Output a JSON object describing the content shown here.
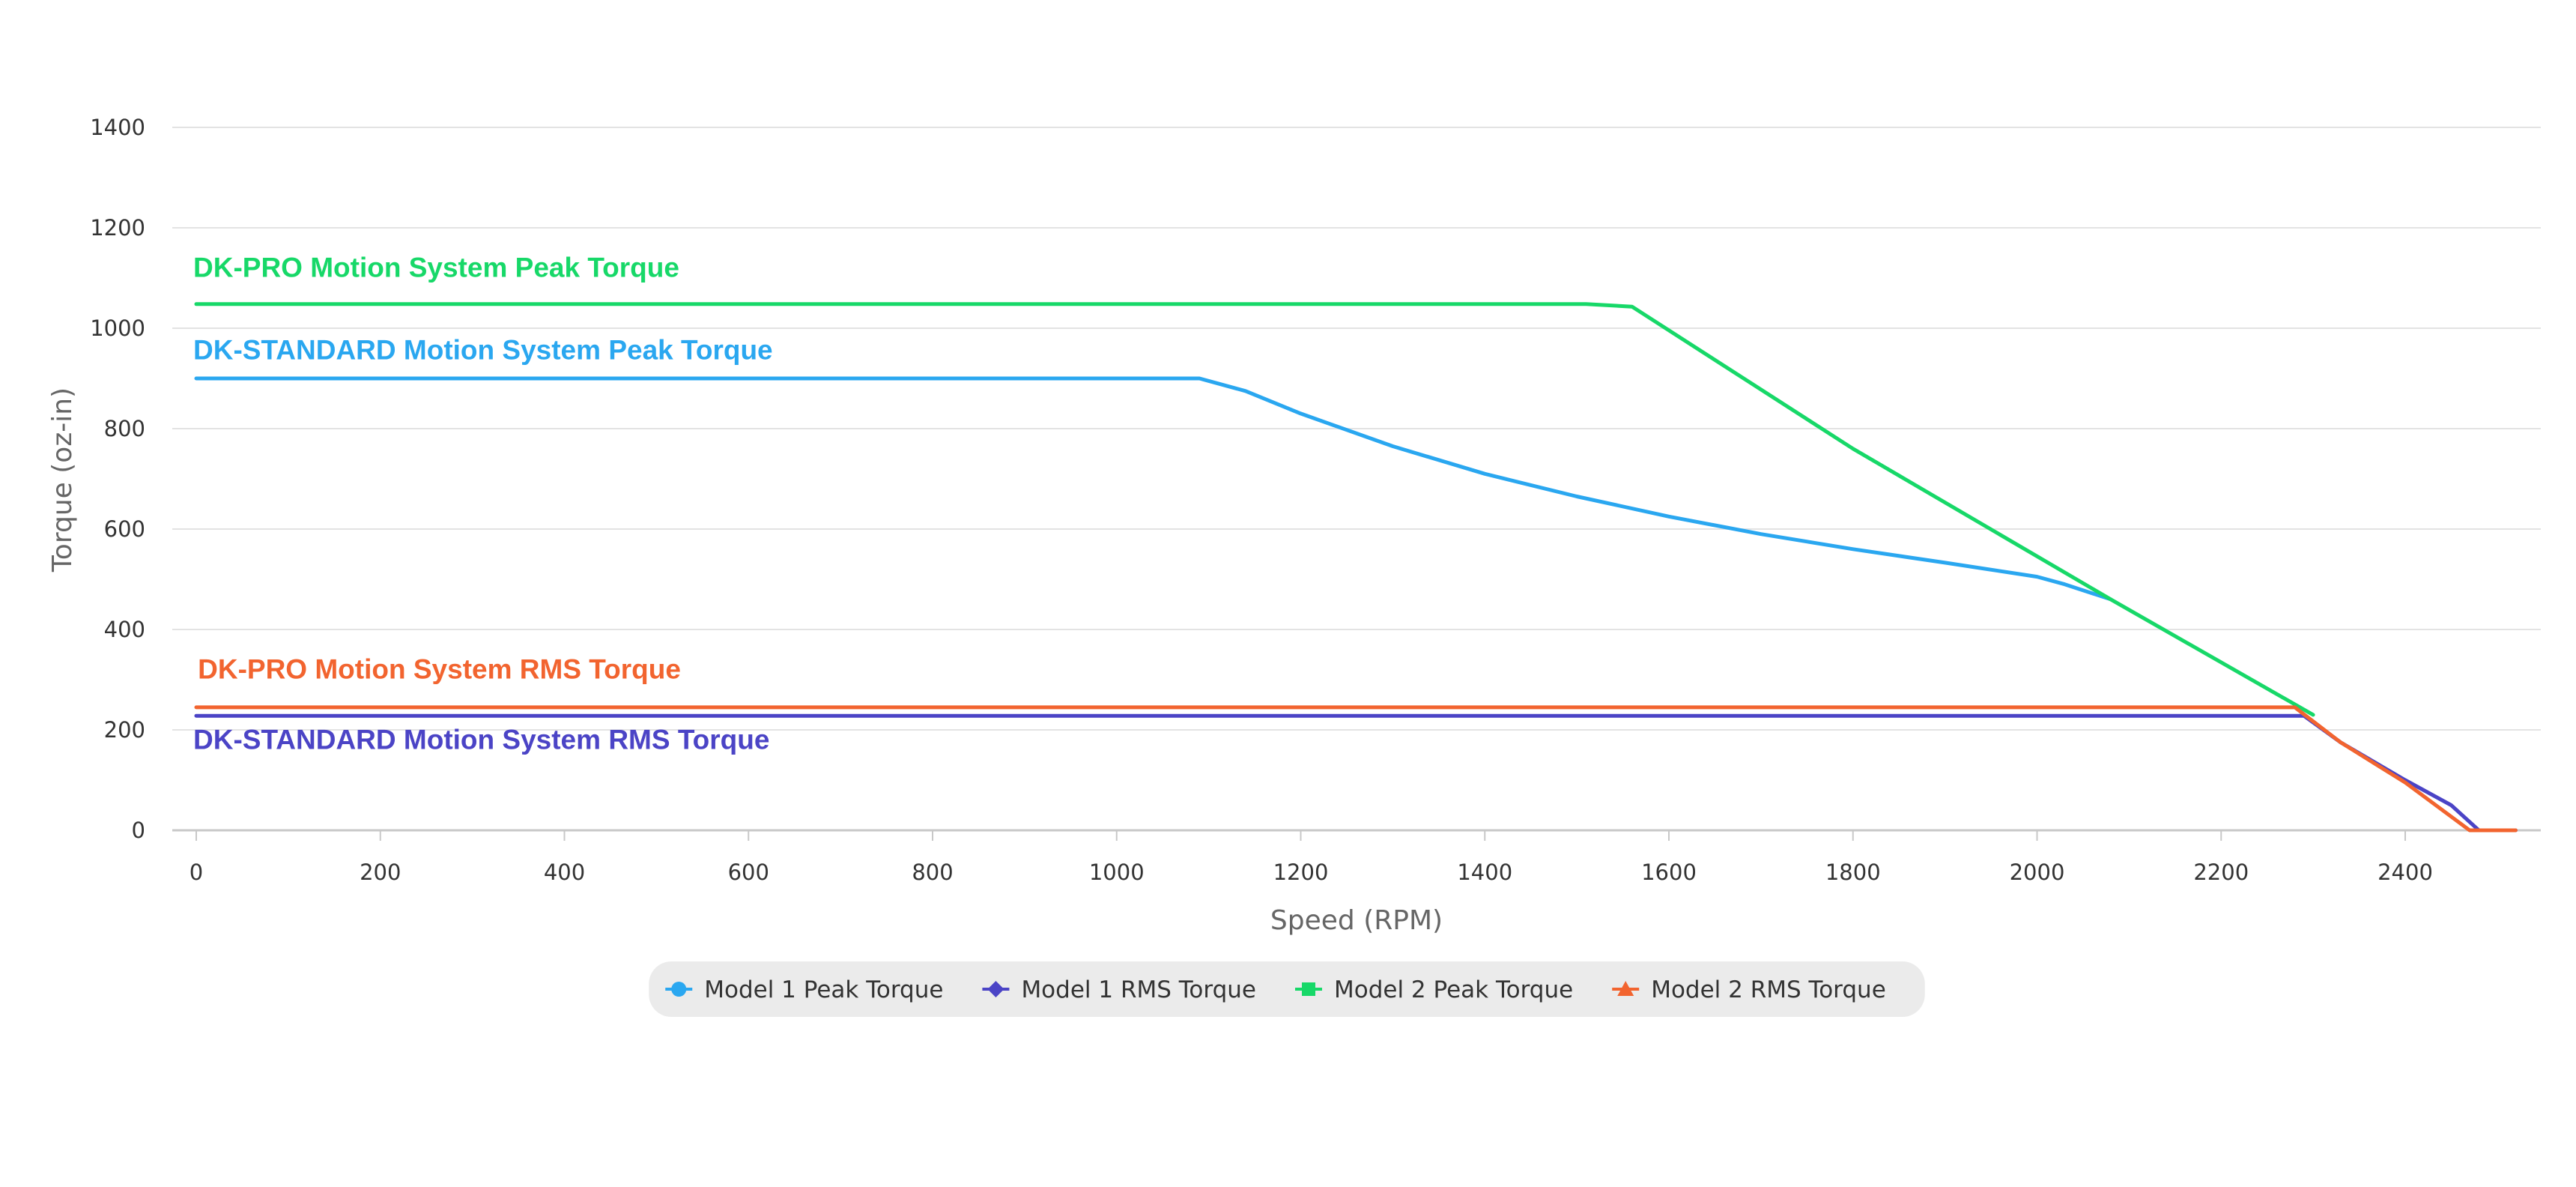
{
  "chart_data": {
    "type": "line",
    "title": "",
    "xlabel": "Speed (RPM)",
    "ylabel": "Torque (oz-in)",
    "xlim": [
      -25,
      2550
    ],
    "ylim": [
      0,
      1400
    ],
    "x_ticks": [
      0,
      200,
      400,
      600,
      800,
      1000,
      1200,
      1400,
      1600,
      1800,
      2000,
      2200,
      2400
    ],
    "y_ticks": [
      0,
      200,
      400,
      600,
      800,
      1000,
      1200,
      1400
    ],
    "grid": true,
    "legend_position": "bottom-center",
    "series": [
      {
        "name": "Model 1 Peak Torque",
        "color": "#2aa7f0",
        "marker": "circle",
        "x": [
          0,
          1090,
          1140,
          1200,
          1300,
          1400,
          1500,
          1600,
          1700,
          1800,
          1900,
          2000,
          2030,
          2080
        ],
        "y": [
          900,
          900,
          875,
          830,
          765,
          710,
          665,
          625,
          590,
          560,
          533,
          505,
          490,
          460
        ]
      },
      {
        "name": "Model 1 RMS Torque",
        "color": "#4b44c6",
        "marker": "diamond",
        "x": [
          0,
          2290,
          2330,
          2400,
          2450,
          2480,
          2520
        ],
        "y": [
          228,
          228,
          175,
          100,
          50,
          0,
          0
        ]
      },
      {
        "name": "Model 2 Peak Torque",
        "color": "#17d868",
        "marker": "square",
        "x": [
          0,
          1510,
          1560,
          1800,
          2080,
          2300
        ],
        "y": [
          1048,
          1048,
          1043,
          760,
          460,
          230
        ]
      },
      {
        "name": "Model 2 RMS Torque",
        "color": "#f2642f",
        "marker": "triangle",
        "x": [
          0,
          2280,
          2330,
          2400,
          2470,
          2520
        ],
        "y": [
          245,
          245,
          175,
          95,
          0,
          0
        ]
      }
    ],
    "annotations": [
      {
        "text": "DK-PRO Motion System Peak Torque",
        "color": "#17d868",
        "x": 0,
        "y": 1102
      },
      {
        "text": "DK-STANDARD Motion System Peak Torque",
        "color": "#2aa7f0",
        "x": 0,
        "y": 938
      },
      {
        "text": "DK-PRO Motion System RMS Torque",
        "color": "#f2642f",
        "x": 5,
        "y": 302
      },
      {
        "text": "DK-STANDARD Motion System RMS Torque",
        "color": "#4b44c6",
        "x": 0,
        "y": 162
      }
    ]
  }
}
